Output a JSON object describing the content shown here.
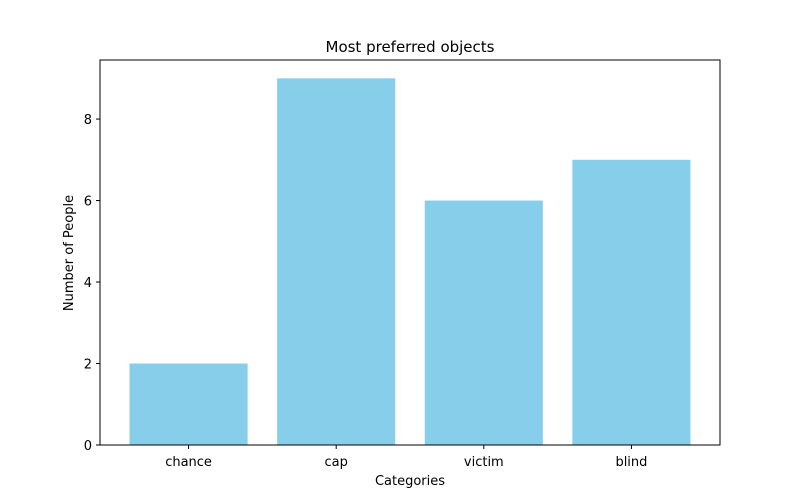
{
  "chart_data": {
    "type": "bar",
    "title": "Most preferred objects",
    "xlabel": "Categories",
    "ylabel": "Number of People",
    "categories": [
      "chance",
      "cap",
      "victim",
      "blind"
    ],
    "values": [
      2,
      9,
      6,
      7
    ],
    "ylim": [
      0,
      9.45
    ],
    "yticks": [
      0,
      2,
      4,
      6,
      8
    ],
    "bar_color": "#87CEEB",
    "grid": false,
    "legend": "none"
  }
}
